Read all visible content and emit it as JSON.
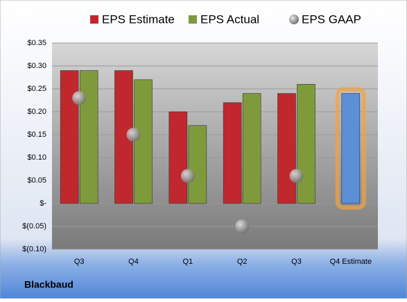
{
  "chart_data": {
    "type": "bar",
    "company": "Blackbaud",
    "categories": [
      "Q3",
      "Q4",
      "Q1",
      "Q2",
      "Q3",
      "Q4 Estimate"
    ],
    "series": [
      {
        "name": "EPS Estimate",
        "color": "#c0282d",
        "values": [
          0.29,
          0.29,
          0.2,
          0.22,
          0.24,
          0.24
        ],
        "point_colors": [
          "#c0282d",
          "#c0282d",
          "#c0282d",
          "#c0282d",
          "#c0282d",
          "#5b8fd6"
        ]
      },
      {
        "name": "EPS Actual",
        "color": "#7f9a3a",
        "values": [
          0.29,
          0.27,
          0.17,
          0.24,
          0.26,
          null
        ]
      },
      {
        "name": "EPS GAAP",
        "color": "#9a9a9a",
        "marker": "circle",
        "values": [
          0.23,
          0.15,
          0.06,
          -0.05,
          0.06,
          null
        ]
      }
    ],
    "ylim": [
      -0.1,
      0.35
    ],
    "yticks": [
      {
        "value": -0.1,
        "label": "$(0.10)"
      },
      {
        "value": -0.05,
        "label": "$(0.05)"
      },
      {
        "value": 0,
        "label": "$-"
      },
      {
        "value": 0.05,
        "label": "$0.05"
      },
      {
        "value": 0.1,
        "label": "$0.10"
      },
      {
        "value": 0.15,
        "label": "$0.15"
      },
      {
        "value": 0.2,
        "label": "$0.20"
      },
      {
        "value": 0.25,
        "label": "$0.25"
      },
      {
        "value": 0.3,
        "label": "$0.30"
      },
      {
        "value": 0.35,
        "label": "$0.35"
      }
    ],
    "grid": true,
    "legend": "top"
  }
}
